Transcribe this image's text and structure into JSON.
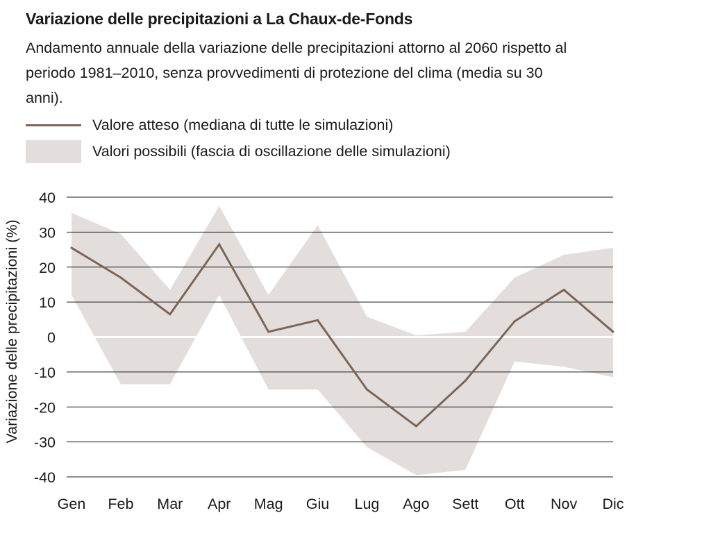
{
  "title": "Variazione delle precipitazioni a La Chaux-de-Fonds",
  "subtitle": "Andamento annuale della variazione delle precipitazioni attorno al 2060 rispetto al periodo 1981–2010, senza provvedimenti di protezione del clima (media su 30 anni).",
  "legend": {
    "median_label": "Valore atteso (mediana di tutte le simulazioni)",
    "band_label": "Valori possibili (fascia di oscillazione delle simulazioni)"
  },
  "colors": {
    "median": "#7d6556",
    "band": "#e3dedc",
    "grid": "#1a1a1a",
    "text": "#1a1a1a"
  },
  "chart_data": {
    "type": "line",
    "ylabel": "Variazione delle precipitazioni (%)",
    "ylim": [
      -40,
      40
    ],
    "yticks": [
      40,
      30,
      20,
      10,
      0,
      -10,
      -20,
      -30,
      -40
    ],
    "categories": [
      "Gen",
      "Feb",
      "Mar",
      "Apr",
      "Mag",
      "Giu",
      "Lug",
      "Ago",
      "Sett",
      "Ott",
      "Nov",
      "Dic"
    ],
    "grid": true,
    "series": [
      {
        "name": "Valore atteso (mediana di tutte le simulazioni)",
        "values": [
          25.5,
          17,
          6.5,
          26.5,
          1.5,
          4.8,
          -15,
          -25.5,
          -12.5,
          4.5,
          13.5,
          1.5
        ]
      }
    ],
    "band": {
      "name": "Valori possibili (fascia di oscillazione delle simulazioni)",
      "upper": [
        35.5,
        29.5,
        13.5,
        37.5,
        12,
        32,
        5.8,
        0.5,
        1.5,
        17,
        23.5,
        25.5
      ],
      "lower": [
        12,
        -13.5,
        -13.5,
        12,
        -15,
        -15,
        -31.5,
        -39.5,
        -38,
        -7,
        -8.5,
        -11.5
      ]
    }
  }
}
